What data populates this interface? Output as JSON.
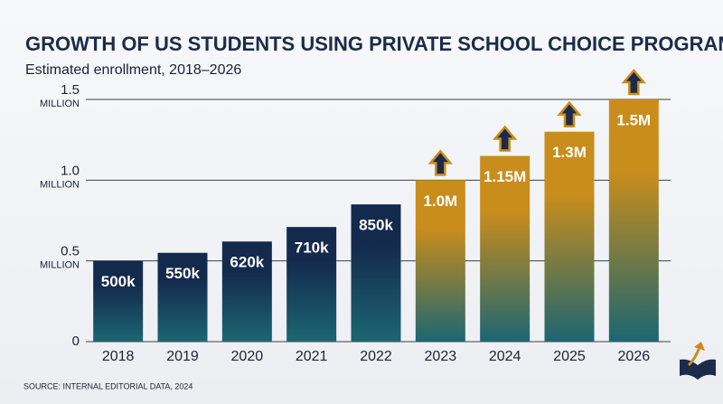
{
  "chart_data": {
    "type": "bar",
    "title": "GROWTH OF US STUDENTS USING PRIVATE SCHOOL CHOICE PROGRAMS",
    "subtitle": "Estimated enrollment, 2018–2026",
    "source": "SOURCE: INTERNAL EDITORIAL DATA, 2024",
    "categories": [
      "2018",
      "2019",
      "2020",
      "2021",
      "2022",
      "2023",
      "2024",
      "2025",
      "2026"
    ],
    "values": [
      0.5,
      0.55,
      0.62,
      0.71,
      0.85,
      1.0,
      1.15,
      1.3,
      1.5
    ],
    "value_labels": [
      "500k",
      "550k",
      "620k",
      "710k",
      "850k",
      "1.0M",
      "1.15M",
      "1.3M",
      "1.5M"
    ],
    "colors": [
      "#142a4d",
      "#142a4d",
      "#142a4d",
      "#142a4d",
      "#142a4d",
      "#c98d1c",
      "#c98d1c",
      "#c98d1c",
      "#c98d1c"
    ],
    "gradient_bottom": "#1c6671",
    "arrow": [
      false,
      false,
      false,
      false,
      false,
      true,
      true,
      true,
      true
    ],
    "ylim": [
      0,
      1.5
    ],
    "yticks": [
      0,
      {
        "value": 0.5,
        "label": "0.5 MILLION"
      },
      {
        "value": 1.0,
        "label": "1.0 MILLION"
      },
      {
        "value": 1.5,
        "label": "1.5 MILLION"
      }
    ],
    "grid": true
  }
}
